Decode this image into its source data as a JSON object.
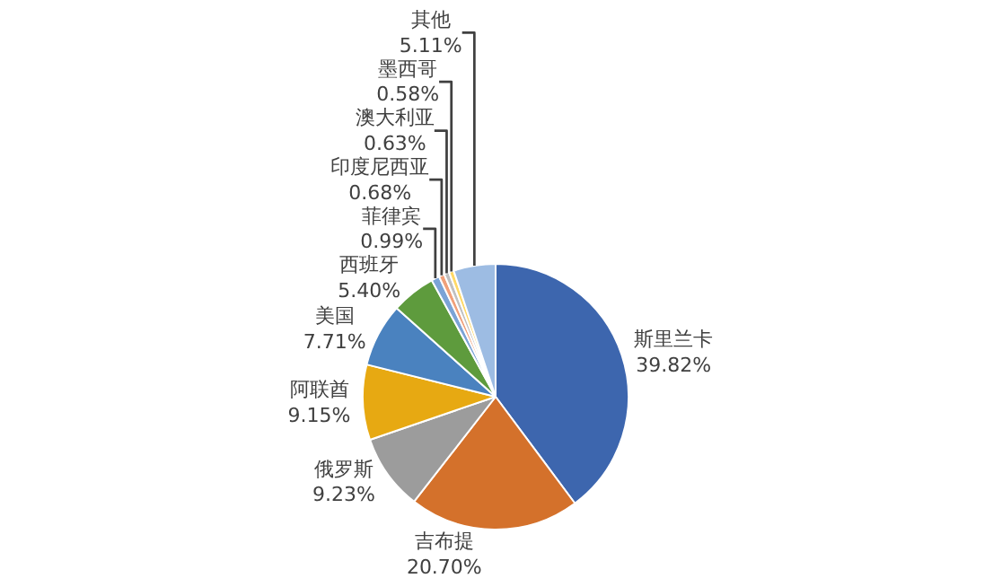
{
  "chart_data": {
    "type": "pie",
    "categories": [
      "斯里兰卡",
      "吉布提",
      "俄罗斯",
      "阿联酋",
      "美国",
      "西班牙",
      "菲律宾",
      "印度尼西亚",
      "澳大利亚",
      "墨西哥",
      "其他"
    ],
    "values": [
      39.82,
      20.7,
      9.23,
      9.15,
      7.71,
      5.4,
      0.99,
      0.68,
      0.63,
      0.58,
      5.11
    ],
    "value_labels": [
      "39.82%",
      "20.70%",
      "9.23%",
      "9.15%",
      "7.71%",
      "5.40%",
      "0.99%",
      "0.68%",
      "0.63%",
      "0.58%",
      "5.11%"
    ],
    "colors": [
      "#3d66ae",
      "#d4712b",
      "#9c9c9c",
      "#e7a912",
      "#4a82bf",
      "#5e9b3d",
      "#7ba3d6",
      "#f0a07a",
      "#c0c0c0",
      "#ffd966",
      "#9dbce3"
    ],
    "legend": false
  }
}
